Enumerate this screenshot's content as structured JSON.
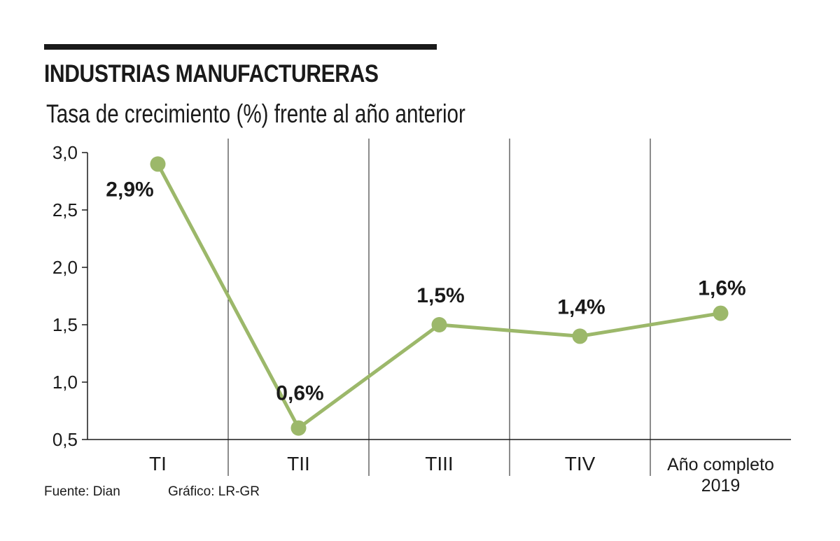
{
  "header": {
    "title": "INDUSTRIAS MANUFACTURERAS",
    "subtitle": "Tasa de crecimiento (%) frente al año anterior"
  },
  "footer": {
    "source": "Fuente: Dian",
    "credit": "Gráfico: LR-GR"
  },
  "colors": {
    "line": "#9cb86a",
    "text": "#1a1a1a",
    "axis": "#1a1a1a"
  },
  "chart_data": {
    "type": "line",
    "categories": [
      "TI",
      "TII",
      "TIII",
      "TIV",
      "Año completo 2019"
    ],
    "category_lines": [
      [
        "TI"
      ],
      [
        "TII"
      ],
      [
        "TIII"
      ],
      [
        "TIV"
      ],
      [
        "Año completo",
        "2019"
      ]
    ],
    "values": [
      2.9,
      0.6,
      1.5,
      1.4,
      1.6
    ],
    "data_labels": [
      "2,9%",
      "0,6%",
      "1,5%",
      "1,4%",
      "1,6%"
    ],
    "y_ticks": [
      0.5,
      1.0,
      1.5,
      2.0,
      2.5,
      3.0
    ],
    "y_tick_labels": [
      "0,5",
      "1,0",
      "1,5",
      "2,0",
      "2,5",
      "3,0"
    ],
    "ylim": [
      0.5,
      3.0
    ],
    "grid": false,
    "category_separators": true
  }
}
